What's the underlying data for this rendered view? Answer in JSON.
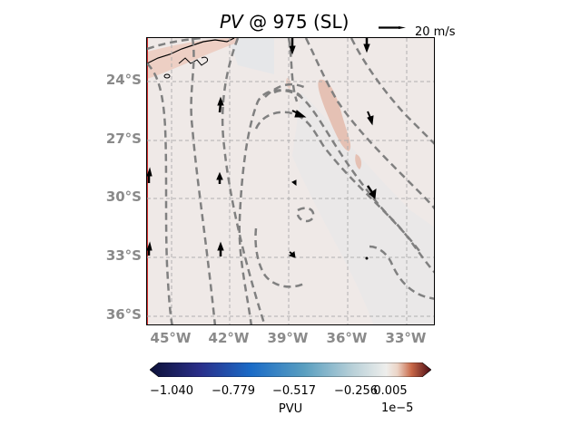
{
  "title": {
    "variable": "PV",
    "rest": " @ 975 (SL)"
  },
  "quiver_key": {
    "label": "20 m/s"
  },
  "latitude_ticks": [
    "24°S",
    "27°S",
    "30°S",
    "33°S",
    "36°S"
  ],
  "longitude_ticks": [
    "45°W",
    "42°W",
    "39°W",
    "36°W",
    "33°W"
  ],
  "colorbar": {
    "ticks": [
      "−1.040",
      "−0.779",
      "−0.517",
      "−0.256",
      "0.005"
    ],
    "label": "PVU",
    "exponent": "1e−5"
  },
  "colors": {
    "background_field": "#efe9e7",
    "contour": "#808080",
    "grid": "#b0b0b0",
    "positive_patch": "#e7c2b6"
  }
}
